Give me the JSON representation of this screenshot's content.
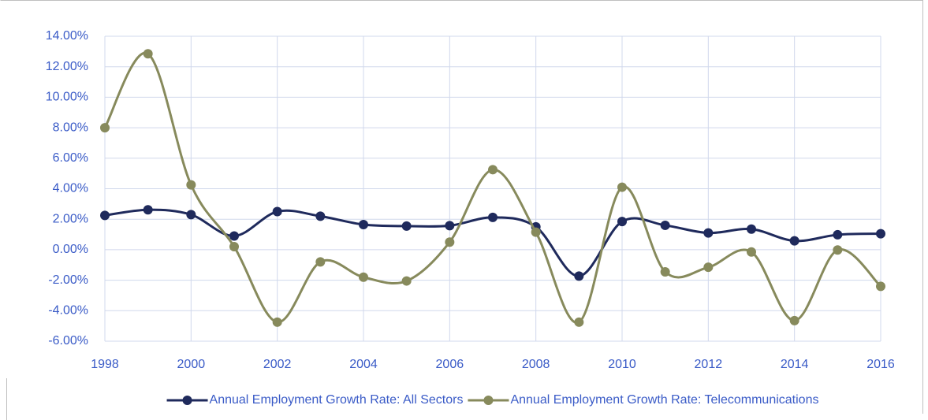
{
  "chart_data": {
    "type": "line",
    "x": [
      1998,
      1999,
      2000,
      2001,
      2002,
      2003,
      2004,
      2005,
      2006,
      2007,
      2008,
      2009,
      2010,
      2011,
      2012,
      2013,
      2014,
      2015,
      2016
    ],
    "series": [
      {
        "name": "Annual Employment Growth Rate: All Sectors",
        "color": "#1f2a5c",
        "values": [
          2.25,
          2.62,
          2.3,
          0.9,
          2.5,
          2.2,
          1.65,
          1.55,
          1.58,
          2.12,
          1.5,
          -1.73,
          1.85,
          1.6,
          1.1,
          1.35,
          0.58,
          0.98,
          1.05
        ]
      },
      {
        "name": "Annual Employment Growth Rate: Telecommunications",
        "color": "#878a5c",
        "values": [
          8.0,
          12.85,
          4.25,
          0.2,
          -4.75,
          -0.8,
          -1.8,
          -2.05,
          0.5,
          5.25,
          1.15,
          -4.75,
          4.1,
          -1.45,
          -1.15,
          -0.15,
          -4.65,
          -0.02,
          -2.4
        ]
      }
    ],
    "xlim": [
      1998,
      2016
    ],
    "xticks": [
      1998,
      2000,
      2002,
      2004,
      2006,
      2008,
      2010,
      2012,
      2014,
      2016
    ],
    "ylim": [
      -6,
      14
    ],
    "yticks": [
      {
        "value": -6,
        "label": "-6.00%"
      },
      {
        "value": -4,
        "label": "-4.00%"
      },
      {
        "value": -2,
        "label": "-2.00%"
      },
      {
        "value": 0,
        "label": "0.00%"
      },
      {
        "value": 2,
        "label": "2.00%"
      },
      {
        "value": 4,
        "label": "4.00%"
      },
      {
        "value": 6,
        "label": "6.00%"
      },
      {
        "value": 8,
        "label": "8.00%"
      },
      {
        "value": 10,
        "label": "10.00%"
      },
      {
        "value": 12,
        "label": "12.00%"
      },
      {
        "value": 14,
        "label": "14.00%"
      }
    ],
    "grid": true,
    "smooth": true,
    "legend": "bottom"
  }
}
